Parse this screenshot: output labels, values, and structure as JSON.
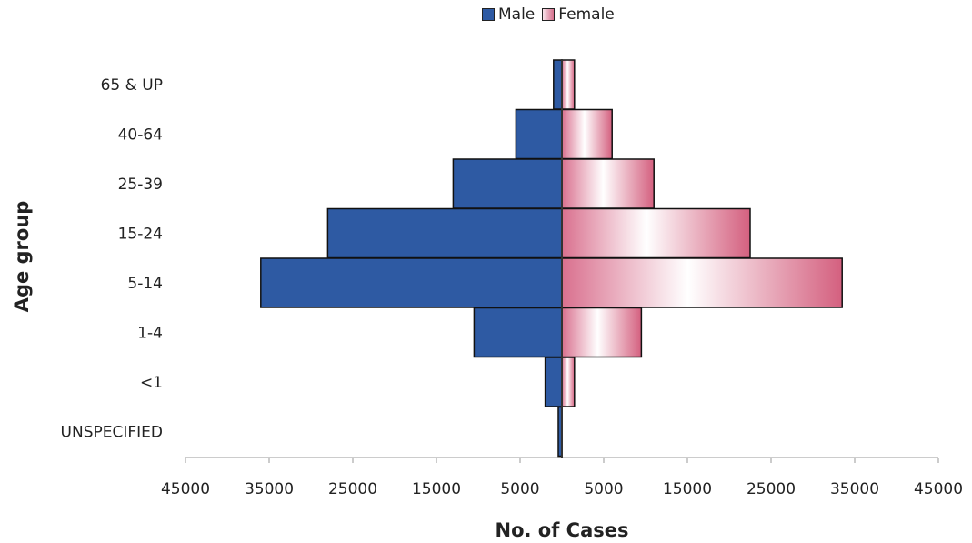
{
  "chart_data": {
    "type": "bar",
    "orientation": "horizontal",
    "layout": "population-pyramid",
    "categories": [
      "65 & UP",
      "40-64",
      "25-39",
      "15-24",
      "5-14",
      "1-4",
      "<1",
      "UNSPECIFIED"
    ],
    "series": [
      {
        "name": "Male",
        "values": [
          1000,
          5500,
          13000,
          28000,
          36000,
          10500,
          2000,
          300
        ],
        "color": "#2e5aa3"
      },
      {
        "name": "Female",
        "values": [
          1500,
          6000,
          11000,
          22500,
          33500,
          9500,
          1500,
          0
        ],
        "color": "#d56f8c"
      }
    ],
    "xlabel": "No. of Cases",
    "ylabel": "Age group",
    "xlim": [
      -45000,
      45000
    ],
    "xticks": [
      -45000,
      -35000,
      -25000,
      -15000,
      -5000,
      5000,
      15000,
      25000,
      35000,
      45000
    ],
    "xtick_labels": [
      "45000",
      "35000",
      "25000",
      "15000",
      "5000",
      "5000",
      "15000",
      "25000",
      "35000",
      "45000"
    ],
    "legend_position": "top",
    "grid": false
  }
}
